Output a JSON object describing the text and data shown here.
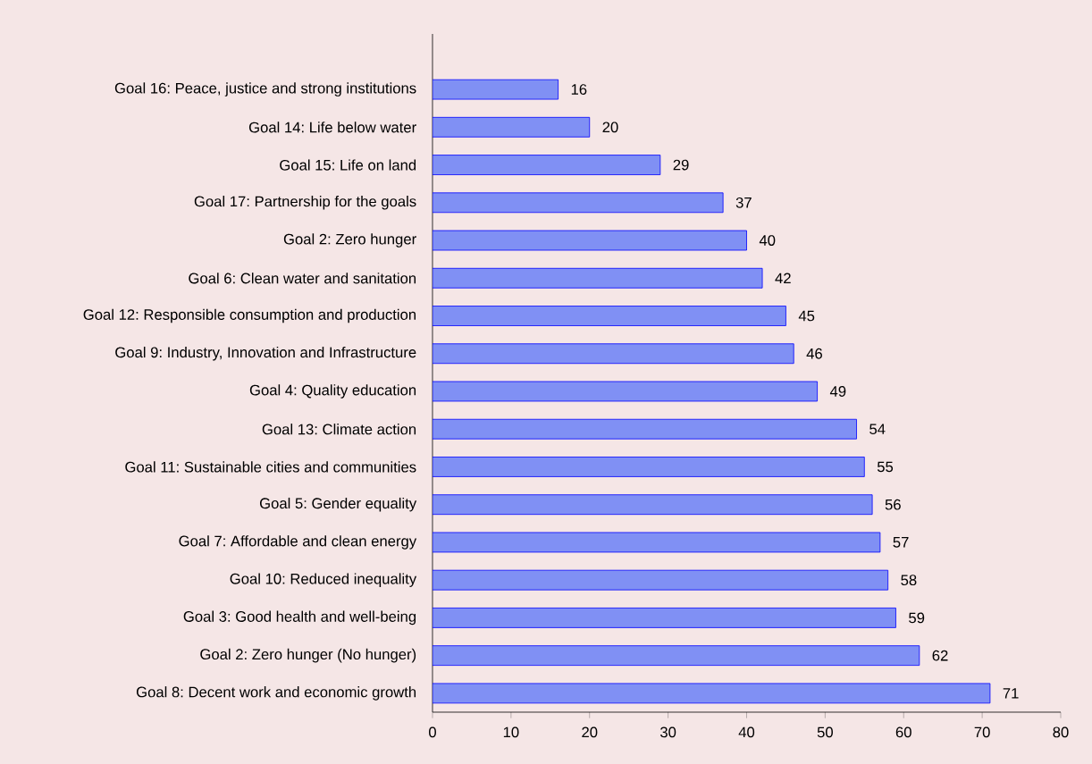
{
  "chart_data": {
    "type": "bar",
    "orientation": "horizontal",
    "categories": [
      "Goal 16: Peace, justice and strong institutions",
      "Goal 14: Life below water",
      "Goal 15: Life on land",
      "Goal 17: Partnership for the goals",
      "Goal 2: Zero hunger",
      "Goal 6: Clean water and sanitation",
      "Goal 12: Responsible consumption and production",
      "Goal 9: Industry, Innovation and Infrastructure",
      "Goal 4: Quality education",
      "Goal 13: Climate action",
      "Goal 11: Sustainable cities and communities",
      "Goal 5: Gender equality",
      "Goal 7: Affordable and clean energy",
      "Goal 10: Reduced inequality",
      "Goal 3: Good health and well-being",
      "Goal 2: Zero hunger (No hunger)",
      "Goal 8: Decent work and economic growth"
    ],
    "values": [
      16,
      20,
      29,
      37,
      40,
      42,
      45,
      46,
      49,
      54,
      55,
      56,
      57,
      58,
      59,
      62,
      71
    ],
    "color": "#8090f4",
    "xlim": [
      0,
      80
    ],
    "xticks": [
      0,
      10,
      20,
      30,
      40,
      50,
      60,
      70,
      80
    ],
    "data_labels": true,
    "grid": false
  }
}
